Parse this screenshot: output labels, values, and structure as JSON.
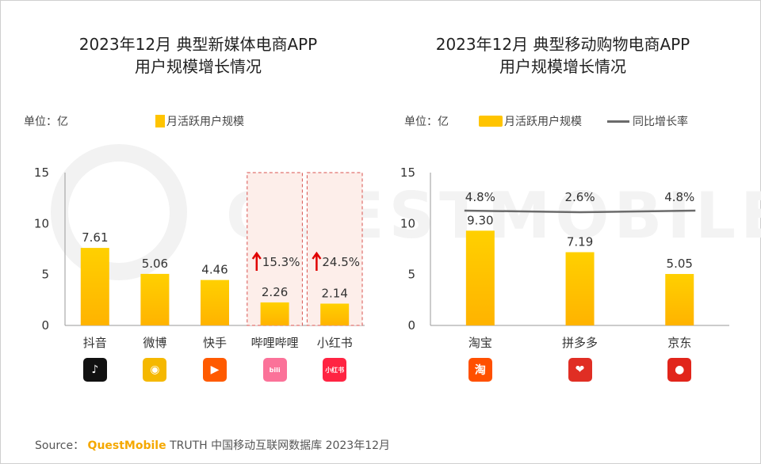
{
  "watermark": "QUESTMOBILE",
  "chart_data": [
    {
      "type": "bar",
      "title_line1": "2023年12月 典型新媒体电商APP",
      "title_line2": "用户规模增长情况",
      "unit": "单位：亿",
      "ylim": [
        0,
        15
      ],
      "yticks": [
        "0",
        "5",
        "10",
        "15"
      ],
      "series": [
        {
          "name": "月活跃用户规模",
          "values": [
            7.61,
            5.06,
            4.46,
            2.26,
            2.14
          ]
        }
      ],
      "categories": [
        "抖音",
        "微博",
        "快手",
        "哔哩哔哩",
        "小红书"
      ],
      "value_labels": [
        "7.61",
        "5.06",
        "4.46",
        "2.26",
        "2.14"
      ],
      "highlights": [
        {
          "category_index": 3,
          "growth": "15.3%"
        },
        {
          "category_index": 4,
          "growth": "24.5%"
        }
      ],
      "icons": [
        {
          "name": "douyin-icon",
          "glyph": "♪",
          "color": "#111111"
        },
        {
          "name": "weibo-icon",
          "glyph": "◉",
          "color": "#f5b800"
        },
        {
          "name": "kuaishou-icon",
          "glyph": "▶",
          "color": "#ff5a00"
        },
        {
          "name": "bilibili-icon",
          "glyph": "bili",
          "color": "#fb7299"
        },
        {
          "name": "xiaohongshu-icon",
          "glyph": "小红书",
          "color": "#ff2442"
        }
      ]
    },
    {
      "type": "bar",
      "title_line1": "2023年12月 典型移动购物电商APP",
      "title_line2": "用户规模增长情况",
      "unit": "单位：亿",
      "ylim": [
        0,
        15
      ],
      "yticks": [
        "0",
        "5",
        "10",
        "15"
      ],
      "series": [
        {
          "name": "月活跃用户规模",
          "values": [
            9.3,
            7.19,
            5.05
          ]
        },
        {
          "name": "同比增长率",
          "values": [
            4.8,
            2.6,
            4.8
          ],
          "labels": [
            "4.8%",
            "2.6%",
            "4.8%"
          ]
        }
      ],
      "categories": [
        "淘宝",
        "拼多多",
        "京东"
      ],
      "value_labels": [
        "9.30",
        "7.19",
        "5.05"
      ],
      "icons": [
        {
          "name": "taobao-icon",
          "glyph": "淘",
          "color": "#ff5000"
        },
        {
          "name": "pinduoduo-icon",
          "glyph": "❤",
          "color": "#e02e24"
        },
        {
          "name": "jd-icon",
          "glyph": "●",
          "color": "#e1251b"
        }
      ]
    }
  ],
  "colors": {
    "bar_top": "#ffd000",
    "bar_bottom": "#ffb300",
    "line": "#6b6b6b",
    "highlight_fill": "#fdeeea",
    "highlight_border": "#d9534f",
    "arrow": "#e00000"
  },
  "source": {
    "prefix": "Source：",
    "brand": "QuestMobile",
    "rest": "TRUTH 中国移动互联网数据库 2023年12月"
  }
}
